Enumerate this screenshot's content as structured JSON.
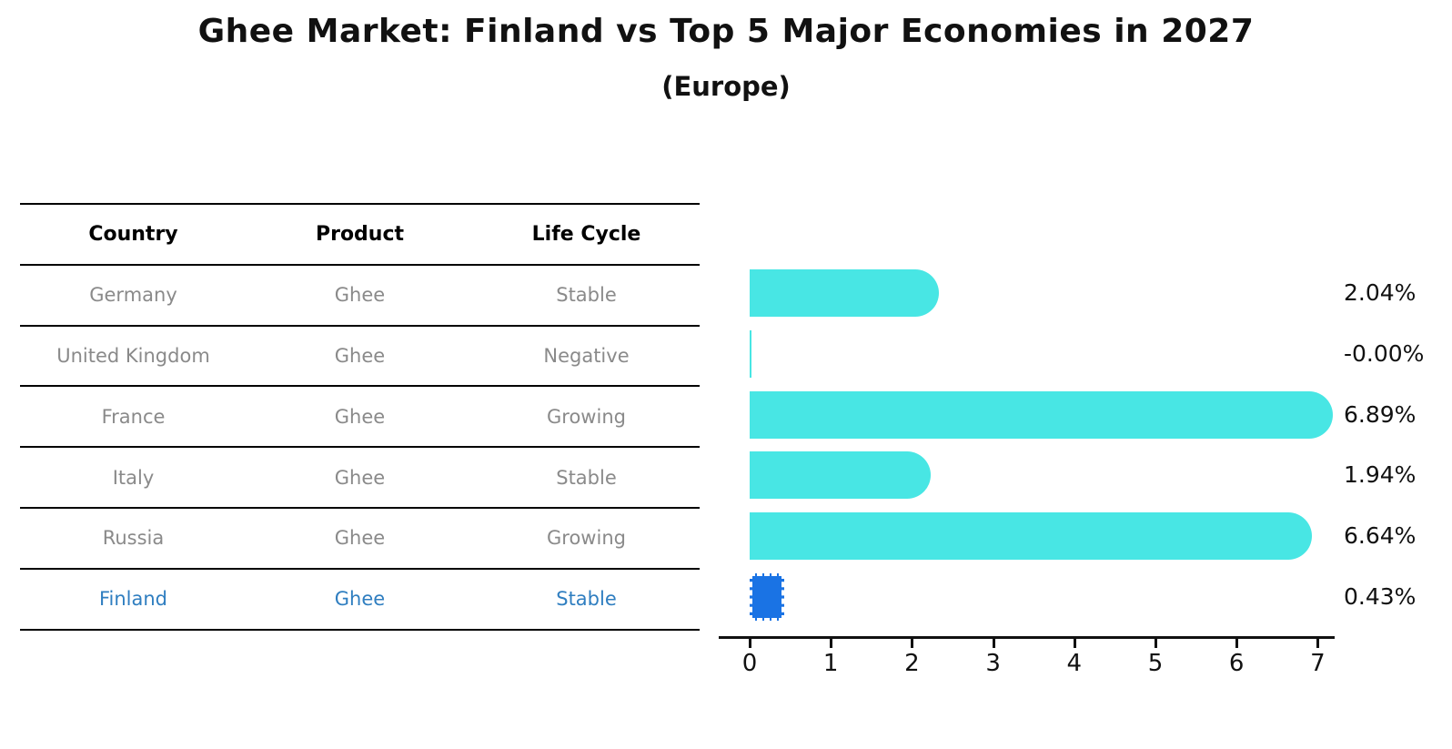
{
  "title": "Ghee Market: Finland vs Top 5 Major Economies in 2027",
  "subtitle": "(Europe)",
  "table": {
    "headers": [
      "Country",
      "Product",
      "Life Cycle"
    ],
    "rows": [
      {
        "country": "Germany",
        "product": "Ghee",
        "life_cycle": "Stable"
      },
      {
        "country": "United Kingdom",
        "product": "Ghee",
        "life_cycle": "Negative"
      },
      {
        "country": "France",
        "product": "Ghee",
        "life_cycle": "Growing"
      },
      {
        "country": "Italy",
        "product": "Ghee",
        "life_cycle": "Stable"
      },
      {
        "country": "Russia",
        "product": "Ghee",
        "life_cycle": "Growing"
      },
      {
        "country": "Finland",
        "product": "Ghee",
        "life_cycle": "Stable"
      }
    ]
  },
  "chart_data": {
    "type": "bar",
    "orientation": "horizontal",
    "title": "Ghee Market: Finland vs Top 5 Major Economies in 2027 (Europe)",
    "categories": [
      "Germany",
      "United Kingdom",
      "France",
      "Italy",
      "Russia",
      "Finland"
    ],
    "values": [
      2.04,
      -0.0,
      6.89,
      1.94,
      6.64,
      0.43
    ],
    "value_labels": [
      "2.04%",
      "-0.00%",
      "6.89%",
      "1.94%",
      "6.64%",
      "0.43%"
    ],
    "x_ticks": [
      "0",
      "1",
      "2",
      "3",
      "4",
      "5",
      "6",
      "7"
    ],
    "xlim": [
      0,
      7.4
    ],
    "grid": "off",
    "legend": "none",
    "bar_color": "#48e6e4",
    "highlight_color": "#1a73e4",
    "highlight_index": 5,
    "highlight_text_color": "#2f7ec0",
    "muted_text_color": "#8a8a8a"
  }
}
